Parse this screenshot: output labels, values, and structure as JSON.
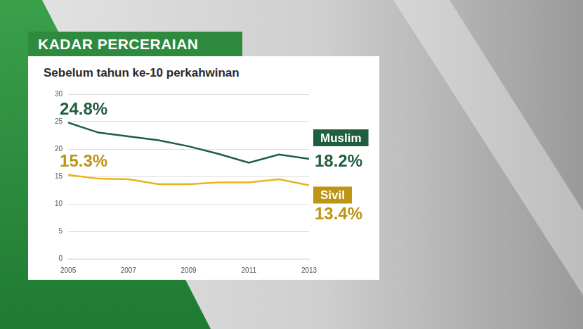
{
  "chart_data": {
    "type": "line",
    "title": "KADAR PERCERAIAN",
    "subtitle": "Sebelum tahun ke-10 perkahwinan",
    "x": [
      2005,
      2006,
      2007,
      2008,
      2009,
      2010,
      2011,
      2012,
      2013
    ],
    "series": [
      {
        "name": "Muslim",
        "color": "#1f5e3e",
        "values": [
          24.8,
          23.0,
          22.3,
          21.6,
          20.5,
          19.1,
          17.5,
          19.0,
          18.2
        ],
        "value_labels": [
          "24.8%",
          null,
          null,
          null,
          null,
          null,
          null,
          null,
          "18.2%"
        ]
      },
      {
        "name": "Sivil",
        "color": "#e8b419",
        "values": [
          15.3,
          14.6,
          14.5,
          13.6,
          13.6,
          13.9,
          13.9,
          14.5,
          13.4
        ],
        "value_labels": [
          "15.3%",
          null,
          null,
          null,
          null,
          null,
          null,
          null,
          "13.4%"
        ]
      }
    ],
    "xlim": [
      2005,
      2013
    ],
    "xticks": [
      2005,
      2007,
      2009,
      2011,
      2013
    ],
    "ylim": [
      0,
      30
    ],
    "yticks": [
      0,
      5,
      10,
      15,
      20,
      25,
      30
    ],
    "grid": true,
    "data_labels": true
  }
}
